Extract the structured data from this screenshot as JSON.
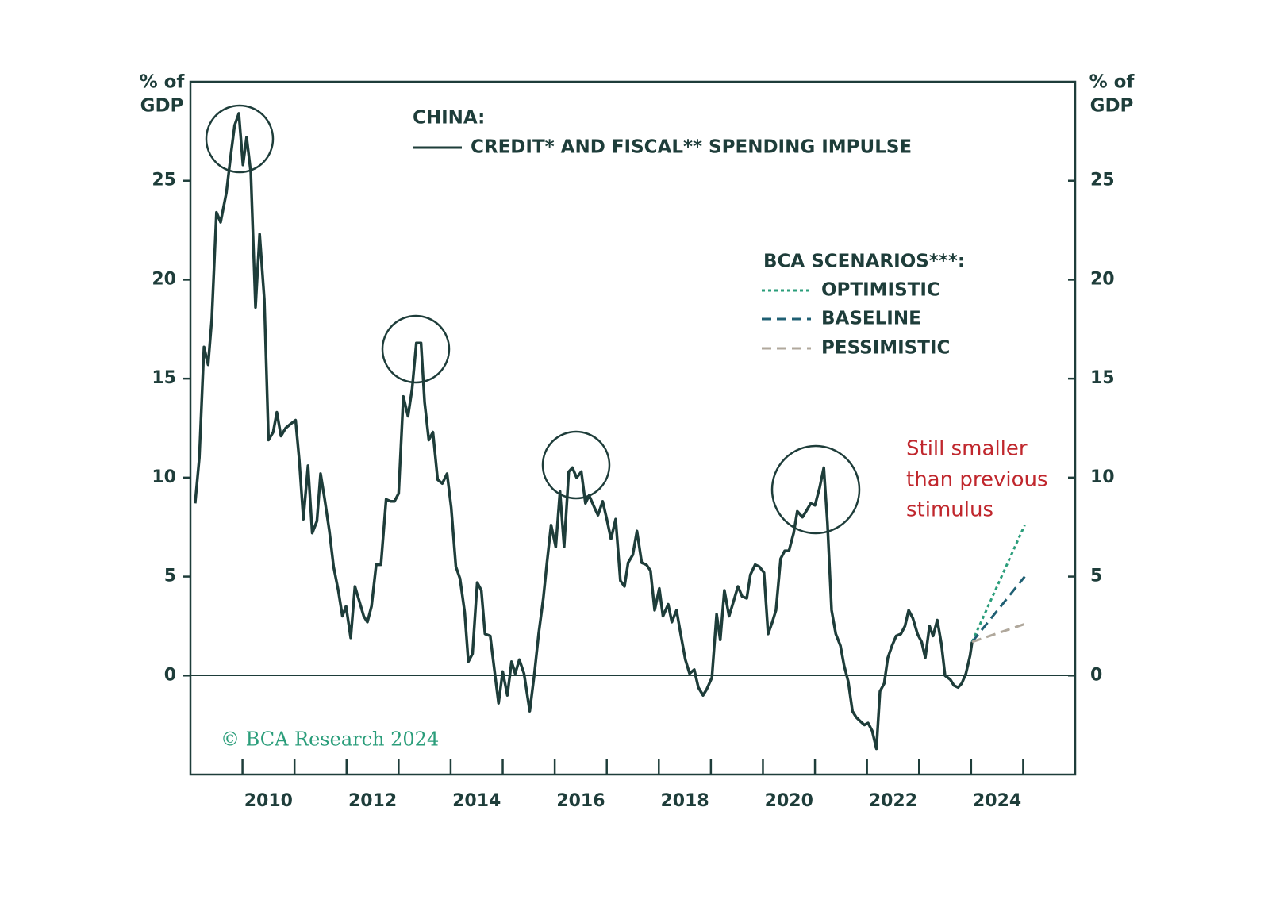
{
  "chart_data": {
    "type": "line",
    "title": "CHINA:",
    "ylabel": [
      "% of",
      "GDP"
    ],
    "y2label": [
      "% of",
      "GDP"
    ],
    "xlim": [
      2009,
      2026
    ],
    "xticks": [
      2010,
      2011,
      2012,
      2013,
      2014,
      2015,
      2016,
      2017,
      2018,
      2019,
      2020,
      2021,
      2022,
      2023,
      2024,
      2025
    ],
    "xlabels": [
      2010,
      2012,
      2014,
      2016,
      2018,
      2020,
      2022,
      2024
    ],
    "ylim": [
      -5,
      30
    ],
    "yticks": [
      0,
      5,
      10,
      15,
      20,
      25
    ],
    "y2lim": [
      -5,
      30
    ],
    "y2ticks": [
      0,
      5,
      10,
      15,
      20,
      25
    ],
    "zero_line": true,
    "series": [
      {
        "name": "CREDIT* AND FISCAL** SPENDING IMPULSE",
        "color": "#1e3d3a",
        "style": "solid",
        "x": [
          2009.09,
          2009.17,
          2009.26,
          2009.34,
          2009.41,
          2009.5,
          2009.58,
          2009.69,
          2009.78,
          2009.85,
          2009.93,
          2010.01,
          2010.08,
          2010.16,
          2010.25,
          2010.33,
          2010.42,
          2010.5,
          2010.59,
          2010.66,
          2010.74,
          2010.83,
          2010.92,
          2011.02,
          2011.09,
          2011.17,
          2011.26,
          2011.34,
          2011.43,
          2011.5,
          2011.58,
          2011.67,
          2011.75,
          2011.84,
          2011.92,
          2011.99,
          2012.08,
          2012.16,
          2012.24,
          2012.33,
          2012.4,
          2012.48,
          2012.57,
          2012.66,
          2012.76,
          2012.85,
          2012.92,
          2013.0,
          2013.09,
          2013.18,
          2013.26,
          2013.34,
          2013.43,
          2013.5,
          2013.58,
          2013.66,
          2013.75,
          2013.84,
          2013.93,
          2014.01,
          2014.1,
          2014.18,
          2014.27,
          2014.34,
          2014.42,
          2014.51,
          2014.59,
          2014.66,
          2014.76,
          2014.83,
          2014.92,
          2015.0,
          2015.09,
          2015.17,
          2015.24,
          2015.32,
          2015.41,
          2015.52,
          2015.61,
          2015.69,
          2015.78,
          2015.85,
          2015.93,
          2016.02,
          2016.1,
          2016.18,
          2016.27,
          2016.34,
          2016.42,
          2016.51,
          2016.59,
          2016.66,
          2016.76,
          2016.83,
          2016.92,
          2017.0,
          2017.08,
          2017.17,
          2017.26,
          2017.34,
          2017.41,
          2017.5,
          2017.58,
          2017.67,
          2017.76,
          2017.84,
          2017.92,
          2018.01,
          2018.08,
          2018.18,
          2018.25,
          2018.34,
          2018.42,
          2018.51,
          2018.59,
          2018.68,
          2018.76,
          2018.85,
          2018.92,
          2019.02,
          2019.11,
          2019.18,
          2019.26,
          2019.35,
          2019.43,
          2019.52,
          2019.6,
          2019.69,
          2019.76,
          2019.85,
          2019.93,
          2020.02,
          2020.1,
          2020.18,
          2020.25,
          2020.34,
          2020.42,
          2020.5,
          2020.59,
          2020.66,
          2020.76,
          2020.83,
          2020.92,
          2021.0,
          2021.09,
          2021.17,
          2021.24,
          2021.32,
          2021.4,
          2021.49,
          2021.56,
          2021.64,
          2021.72,
          2021.79,
          2021.87,
          2021.95,
          2022.02,
          2022.1,
          2022.18,
          2022.25,
          2022.33,
          2022.4,
          2022.48,
          2022.56,
          2022.65,
          2022.73,
          2022.8,
          2022.88,
          2022.97,
          2023.05,
          2023.12,
          2023.2,
          2023.27,
          2023.35,
          2023.43,
          2023.5,
          2023.6,
          2023.67,
          2023.75,
          2023.82,
          2023.9,
          2023.98,
          2024.02
        ],
        "values": [
          8.7,
          11.0,
          16.6,
          15.7,
          18.0,
          23.4,
          22.9,
          24.4,
          26.4,
          27.8,
          28.4,
          25.8,
          27.2,
          25.4,
          18.6,
          22.3,
          19.0,
          11.9,
          12.3,
          13.3,
          12.1,
          12.5,
          12.7,
          12.9,
          10.9,
          7.9,
          10.6,
          7.2,
          7.8,
          10.2,
          8.9,
          7.3,
          5.5,
          4.3,
          3.0,
          3.5,
          1.9,
          4.5,
          3.8,
          3.0,
          2.7,
          3.5,
          5.6,
          5.6,
          8.9,
          8.8,
          8.8,
          9.2,
          14.1,
          13.1,
          14.5,
          16.8,
          16.8,
          13.8,
          11.9,
          12.3,
          9.9,
          9.7,
          10.2,
          8.5,
          5.5,
          4.9,
          3.2,
          0.7,
          1.1,
          4.7,
          4.3,
          2.1,
          2.0,
          0.5,
          -1.4,
          0.2,
          -1.0,
          0.7,
          0.1,
          0.8,
          0.1,
          -1.8,
          0.1,
          2.1,
          3.9,
          5.7,
          7.6,
          6.5,
          9.3,
          6.5,
          10.3,
          10.5,
          10.0,
          10.3,
          8.7,
          9.1,
          8.5,
          8.1,
          8.8,
          7.9,
          6.9,
          7.9,
          4.8,
          4.5,
          5.7,
          6.1,
          7.3,
          5.7,
          5.6,
          5.3,
          3.3,
          4.4,
          3.0,
          3.6,
          2.7,
          3.3,
          2.1,
          0.8,
          0.1,
          0.3,
          -0.6,
          -1.0,
          -0.7,
          -0.1,
          3.1,
          1.8,
          4.3,
          3.0,
          3.7,
          4.5,
          4.0,
          3.9,
          5.1,
          5.6,
          5.5,
          5.2,
          2.1,
          2.7,
          3.3,
          5.9,
          6.3,
          6.3,
          7.2,
          8.3,
          8.0,
          8.3,
          8.7,
          8.6,
          9.5,
          10.5,
          7.7,
          3.3,
          2.1,
          1.5,
          0.5,
          -0.3,
          -1.8,
          -2.1,
          -2.3,
          -2.5,
          -2.4,
          -2.8,
          -3.7,
          -0.8,
          -0.4,
          0.9,
          1.5,
          2.0,
          2.1,
          2.5,
          3.3,
          2.9,
          2.1,
          1.7,
          0.9,
          2.5,
          2.0,
          2.8,
          1.6,
          0.0,
          -0.2,
          -0.5,
          -0.6,
          -0.4,
          0.1,
          1.0,
          1.7
        ]
      },
      {
        "name": "OPTIMISTIC",
        "color": "#2a9d7a",
        "style": "dotted",
        "x": [
          2024.02,
          2025.03
        ],
        "values": [
          1.7,
          7.6
        ]
      },
      {
        "name": "BASELINE",
        "color": "#1f5f73",
        "style": "dashed",
        "x": [
          2024.02,
          2025.03
        ],
        "values": [
          1.7,
          5.0
        ]
      },
      {
        "name": "PESSIMISTIC",
        "color": "#b0a89c",
        "style": "dashed",
        "x": [
          2024.02,
          2025.03
        ],
        "values": [
          1.7,
          2.6
        ]
      }
    ],
    "legend2_title": "BCA SCENARIOS***:",
    "annotation": [
      "Still smaller",
      "than previous",
      "stimulus"
    ],
    "source": "© BCA Research 2024"
  }
}
